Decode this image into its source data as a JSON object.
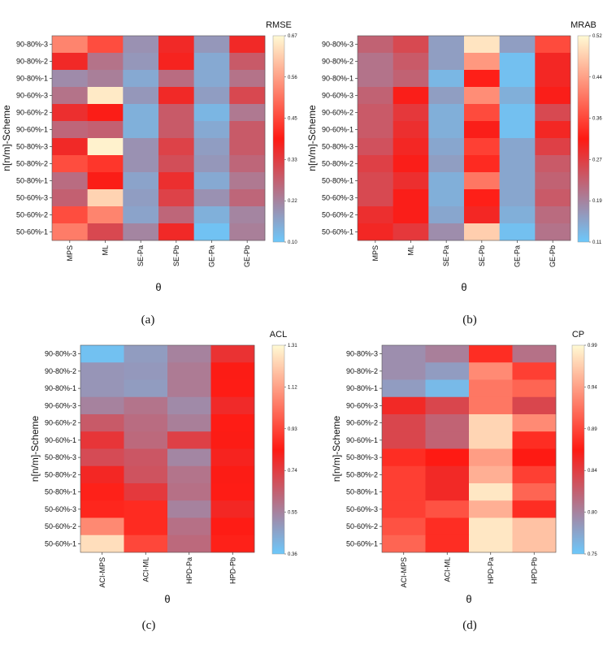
{
  "colors": {
    "low": "#6cc8fb",
    "mid": "#fe1a13",
    "high": "#fffad4"
  },
  "chart_data": [
    {
      "type": "heatmap",
      "caption": "(a)",
      "title": "RMSE",
      "xlabel": "θ",
      "ylabel": "n[n/m]-Scheme",
      "columns": [
        "MPS",
        "ML",
        "SE-Pa",
        "SE-Pb",
        "GE-Pa",
        "GE-Pb"
      ],
      "rows": [
        "90-80%-3",
        "90-80%-2",
        "90-80%-1",
        "90-60%-3",
        "90-60%-2",
        "90-60%-1",
        "50-80%-3",
        "50-80%-2",
        "50-80%-1",
        "50-60%-3",
        "50-60%-2",
        "50-60%-1"
      ],
      "vmin": 0.1,
      "vmax": 0.67,
      "colorbar_ticks": [
        "0.67",
        "0.56",
        "0.45",
        "0.33",
        "0.22",
        "0.10"
      ],
      "values": [
        [
          0.52,
          0.45,
          0.19,
          0.36,
          0.18,
          0.36
        ],
        [
          0.36,
          0.24,
          0.18,
          0.37,
          0.15,
          0.28
        ],
        [
          0.2,
          0.22,
          0.15,
          0.25,
          0.15,
          0.24
        ],
        [
          0.24,
          0.65,
          0.18,
          0.36,
          0.17,
          0.31
        ],
        [
          0.35,
          0.38,
          0.14,
          0.28,
          0.13,
          0.23
        ],
        [
          0.26,
          0.27,
          0.14,
          0.28,
          0.15,
          0.28
        ],
        [
          0.36,
          0.66,
          0.19,
          0.32,
          0.17,
          0.28
        ],
        [
          0.45,
          0.42,
          0.19,
          0.3,
          0.18,
          0.26
        ],
        [
          0.25,
          0.38,
          0.16,
          0.35,
          0.15,
          0.23
        ],
        [
          0.27,
          0.62,
          0.17,
          0.32,
          0.19,
          0.26
        ],
        [
          0.45,
          0.52,
          0.16,
          0.26,
          0.14,
          0.21
        ],
        [
          0.51,
          0.31,
          0.21,
          0.36,
          0.11,
          0.22
        ]
      ]
    },
    {
      "type": "heatmap",
      "caption": "(b)",
      "title": "MRAB",
      "xlabel": "θ",
      "ylabel": "n[n/m]-Scheme",
      "columns": [
        "MPS",
        "ML",
        "SE-Pa",
        "SE-Pb",
        "GE-Pa",
        "GE-Pb"
      ],
      "rows": [
        "90-80%-3",
        "90-80%-2",
        "90-80%-1",
        "90-60%-3",
        "90-60%-2",
        "90-60%-1",
        "50-80%-3",
        "50-80%-2",
        "50-80%-1",
        "50-60%-3",
        "50-60%-2",
        "50-60%-1"
      ],
      "vmin": 0.11,
      "vmax": 0.52,
      "colorbar_ticks": [
        "0.52",
        "0.44",
        "0.36",
        "0.27",
        "0.19",
        "0.11"
      ],
      "values": [
        [
          0.23,
          0.26,
          0.16,
          0.5,
          0.16,
          0.36
        ],
        [
          0.21,
          0.24,
          0.16,
          0.43,
          0.12,
          0.3
        ],
        [
          0.21,
          0.23,
          0.13,
          0.32,
          0.12,
          0.3
        ],
        [
          0.23,
          0.31,
          0.16,
          0.42,
          0.14,
          0.31
        ],
        [
          0.24,
          0.28,
          0.14,
          0.36,
          0.12,
          0.26
        ],
        [
          0.24,
          0.29,
          0.14,
          0.31,
          0.12,
          0.3
        ],
        [
          0.25,
          0.3,
          0.15,
          0.35,
          0.15,
          0.27
        ],
        [
          0.27,
          0.31,
          0.16,
          0.33,
          0.15,
          0.24
        ],
        [
          0.26,
          0.29,
          0.14,
          0.4,
          0.15,
          0.23
        ],
        [
          0.26,
          0.31,
          0.14,
          0.32,
          0.15,
          0.24
        ],
        [
          0.29,
          0.31,
          0.15,
          0.3,
          0.14,
          0.22
        ],
        [
          0.3,
          0.28,
          0.18,
          0.48,
          0.12,
          0.21
        ]
      ]
    },
    {
      "type": "heatmap",
      "caption": "(c)",
      "title": "ACL",
      "xlabel": "θ",
      "ylabel": "n[n/m]-Scheme",
      "columns": [
        "ACI-MPS",
        "ACI-ML",
        "HPD-Pa",
        "HPD-Pb"
      ],
      "rows": [
        "90-80%-3",
        "90-80%-2",
        "90-80%-1",
        "90-60%-3",
        "90-60%-2",
        "90-60%-1",
        "50-80%-3",
        "50-80%-2",
        "50-80%-1",
        "50-60%-3",
        "50-60%-2",
        "50-60%-1"
      ],
      "vmin": 0.36,
      "vmax": 1.31,
      "colorbar_ticks": [
        "1.31",
        "1.12",
        "0.93",
        "0.74",
        "0.55",
        "0.36"
      ],
      "values": [
        [
          0.38,
          0.48,
          0.55,
          0.77
        ],
        [
          0.5,
          0.49,
          0.57,
          0.83
        ],
        [
          0.5,
          0.48,
          0.57,
          0.84
        ],
        [
          0.55,
          0.59,
          0.53,
          0.79
        ],
        [
          0.66,
          0.61,
          0.56,
          0.84
        ],
        [
          0.76,
          0.62,
          0.73,
          0.83
        ],
        [
          0.7,
          0.67,
          0.54,
          0.81
        ],
        [
          0.8,
          0.68,
          0.59,
          0.83
        ],
        [
          0.85,
          0.75,
          0.6,
          0.84
        ],
        [
          0.86,
          0.87,
          0.55,
          0.8
        ],
        [
          1.07,
          0.87,
          0.6,
          0.84
        ],
        [
          1.25,
          0.93,
          0.62,
          0.85
        ]
      ]
    },
    {
      "type": "heatmap",
      "caption": "(d)",
      "title": "CP",
      "xlabel": "θ",
      "ylabel": "n[n/m]-Scheme",
      "columns": [
        "ACI-MPS",
        "ACI-ML",
        "HPD-Pa",
        "HPD-Pb"
      ],
      "rows": [
        "90-80%-3",
        "90-80%-2",
        "90-80%-1",
        "90-60%-3",
        "90-60%-2",
        "90-60%-1",
        "50-80%-3",
        "50-80%-2",
        "50-80%-1",
        "50-60%-3",
        "50-60%-2",
        "50-60%-1"
      ],
      "vmin": 0.75,
      "vmax": 0.99,
      "colorbar_ticks": [
        "0.99",
        "0.94",
        "0.89",
        "0.84",
        "0.80",
        "0.75"
      ],
      "values": [
        [
          0.79,
          0.8,
          0.88,
          0.81
        ],
        [
          0.79,
          0.78,
          0.93,
          0.89
        ],
        [
          0.78,
          0.76,
          0.92,
          0.91
        ],
        [
          0.86,
          0.84,
          0.92,
          0.84
        ],
        [
          0.84,
          0.82,
          0.97,
          0.93
        ],
        [
          0.84,
          0.82,
          0.97,
          0.88
        ],
        [
          0.88,
          0.87,
          0.94,
          0.87
        ],
        [
          0.89,
          0.86,
          0.95,
          0.89
        ],
        [
          0.89,
          0.86,
          0.98,
          0.91
        ],
        [
          0.89,
          0.9,
          0.95,
          0.88
        ],
        [
          0.9,
          0.88,
          0.98,
          0.96
        ],
        [
          0.91,
          0.88,
          0.98,
          0.96
        ]
      ]
    }
  ]
}
